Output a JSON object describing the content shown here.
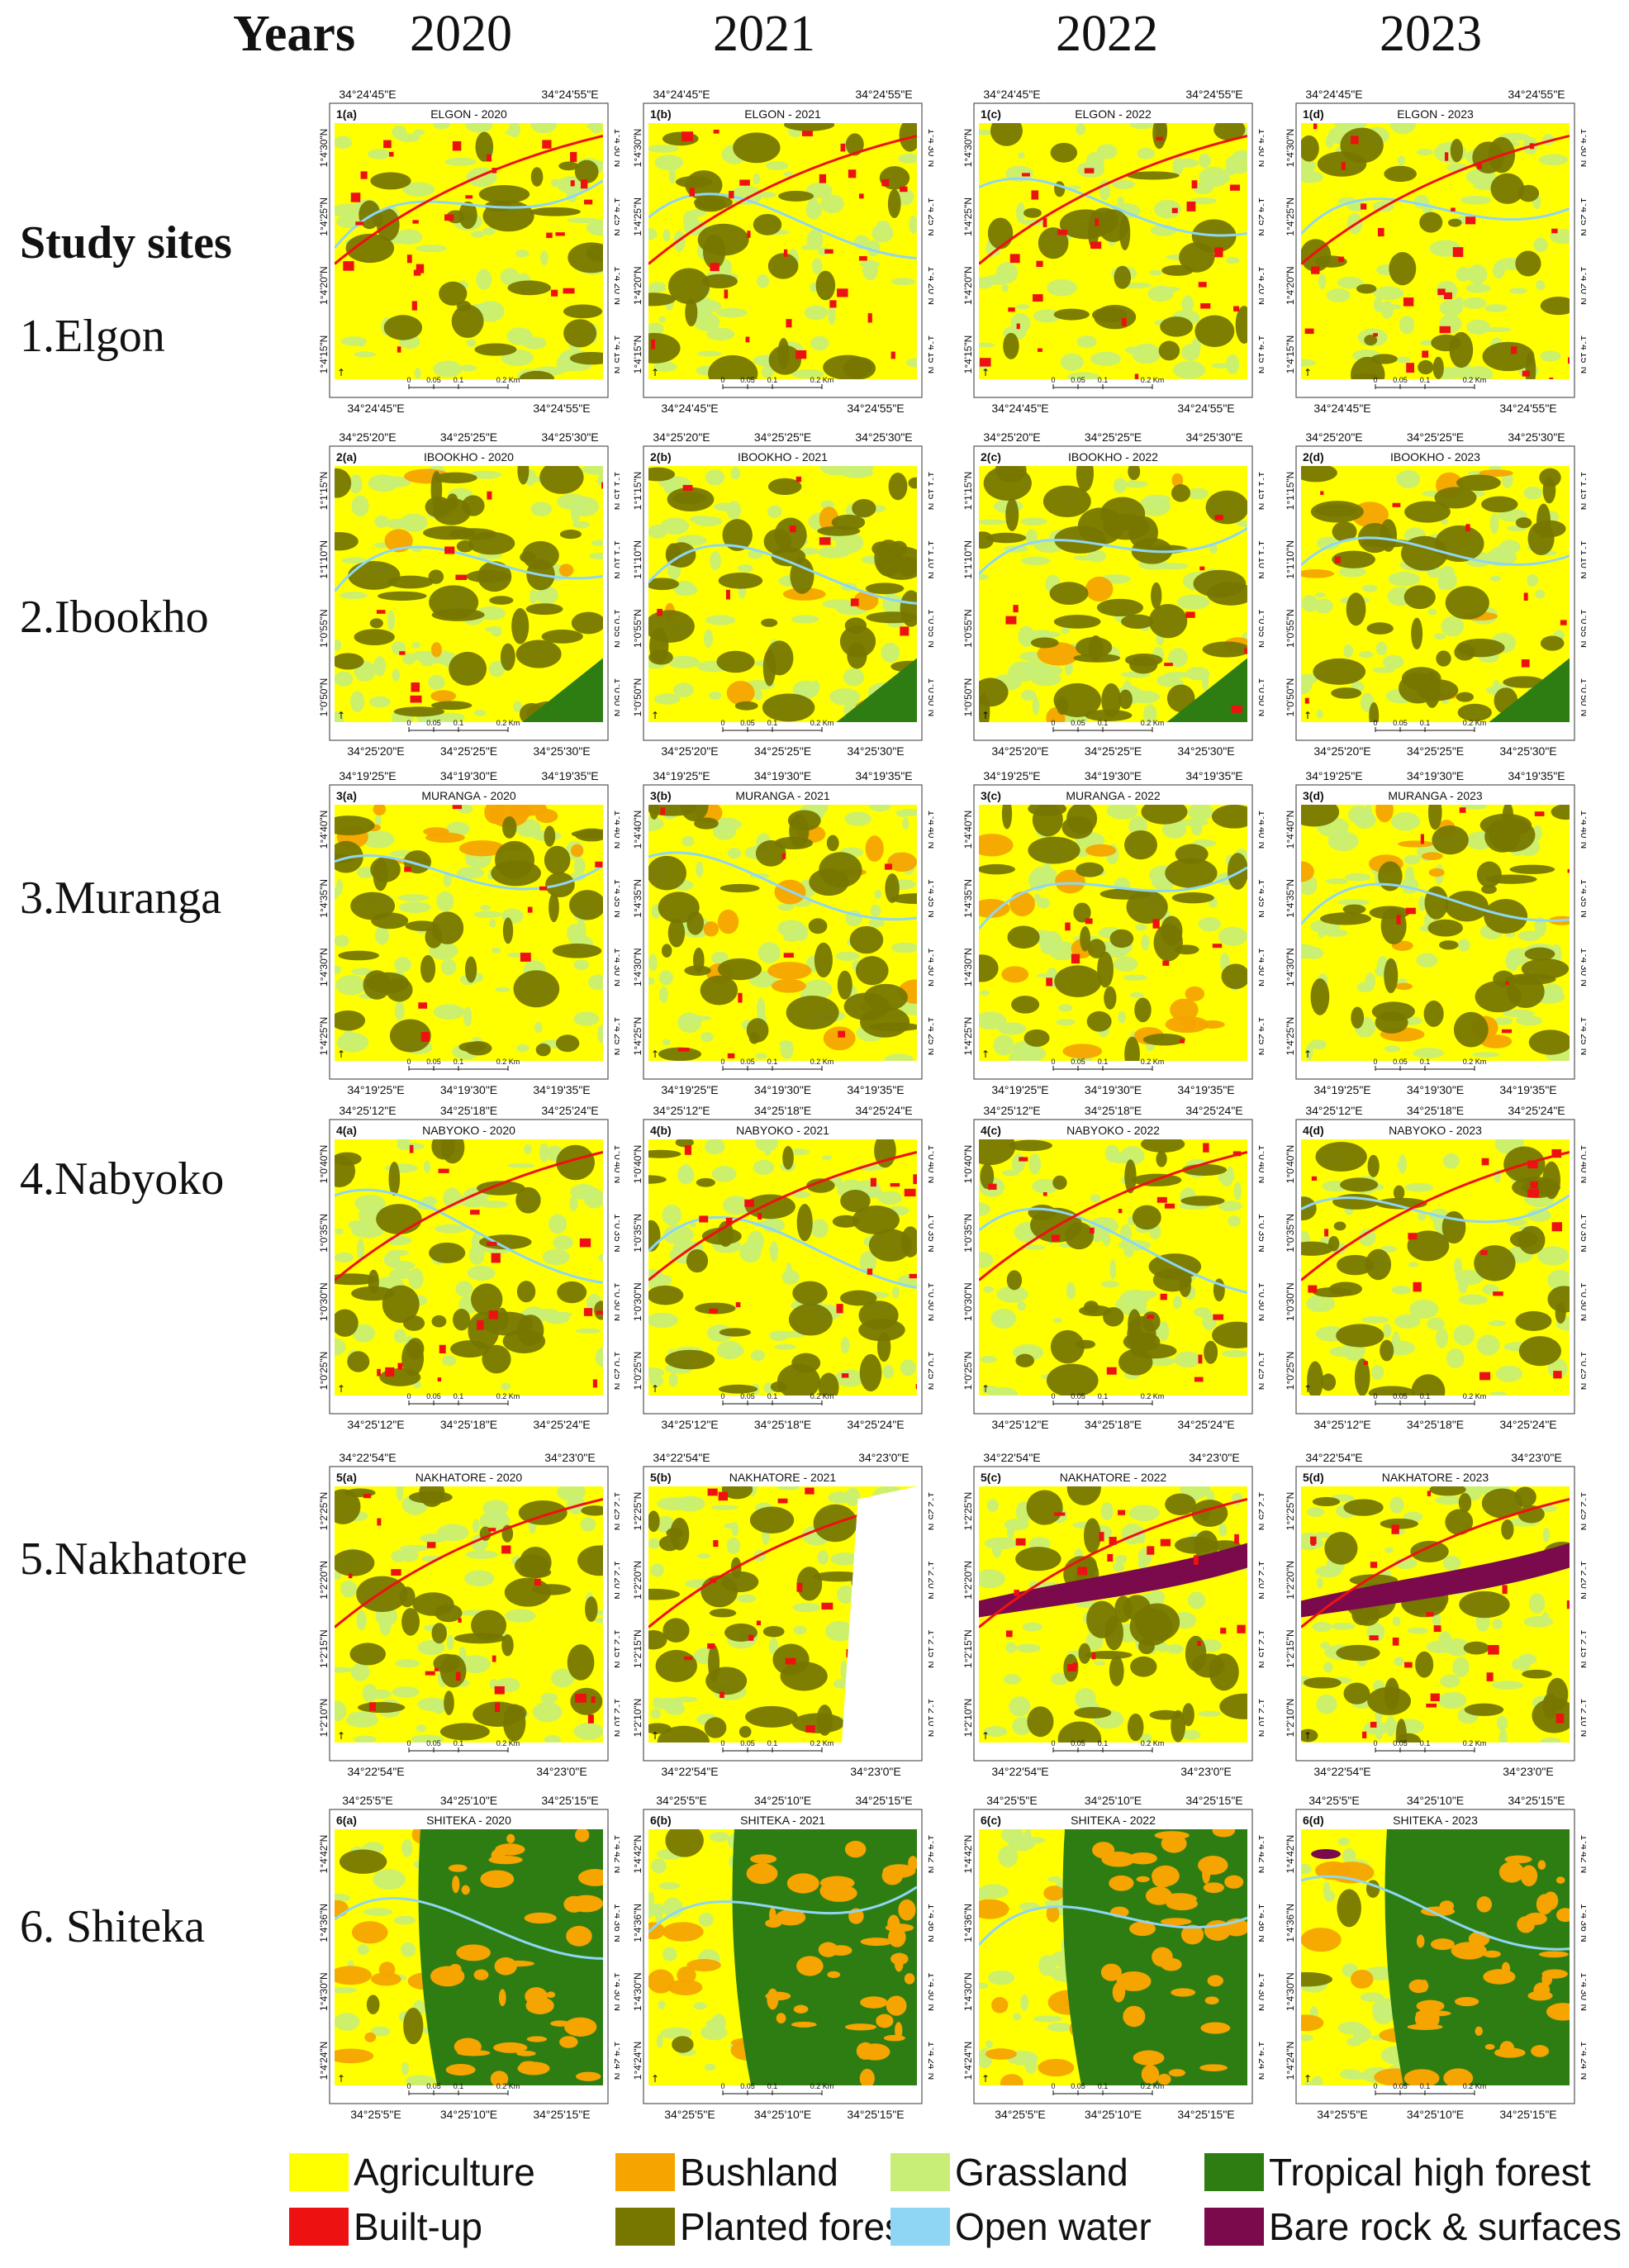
{
  "header": {
    "years_label": "Years",
    "study_sites_label": "Study sites"
  },
  "years": [
    "2020",
    "2021",
    "2022",
    "2023"
  ],
  "sites": [
    {
      "label": "1.Elgon",
      "name": "ELGON",
      "top_lon": [
        "34°24'45\"E",
        "34°24'55\"E"
      ],
      "bottom_lon": [
        "34°24'45\"E",
        "34°24'55\"E"
      ],
      "lat": [
        "1°4'30\"N",
        "1°4'25\"N",
        "1°4'20\"N",
        "1°4'15\"N"
      ],
      "builtup_level": 0.16,
      "forest_level": 0.3,
      "tropical_level": 0.0,
      "bushland_level": 0.0,
      "water_level": 0.05,
      "bare_level": 0.0
    },
    {
      "label": "2.Ibookho",
      "name": "IBOOKHO",
      "top_lon": [
        "34°25'20\"E",
        "34°25'25\"E",
        "34°25'30\"E"
      ],
      "bottom_lon": [
        "34°25'20\"E",
        "34°25'25\"E",
        "34°25'30\"E"
      ],
      "lat": [
        "1°1'15\"N",
        "1°1'10\"N",
        "1°0'55\"N",
        "1°0'50\"N"
      ],
      "builtup_level": 0.05,
      "forest_level": 0.45,
      "tropical_level": 0.05,
      "bushland_level": 0.05,
      "water_level": 0.04,
      "bare_level": 0.0
    },
    {
      "label": "3.Muranga",
      "name": "MURANGA",
      "top_lon": [
        "34°19'25\"E",
        "34°19'30\"E",
        "34°19'35\"E"
      ],
      "bottom_lon": [
        "34°19'25\"E",
        "34°19'30\"E",
        "34°19'35\"E"
      ],
      "lat": [
        "1°4'40\"N",
        "1°4'35\"N",
        "1°4'30\"N",
        "1°4'25\"N"
      ],
      "builtup_level": 0.05,
      "forest_level": 0.4,
      "tropical_level": 0.0,
      "bushland_level": 0.12,
      "water_level": 0.03,
      "bare_level": 0.0
    },
    {
      "label": "4.Nabyoko",
      "name": "NABYOKO",
      "top_lon": [
        "34°25'12\"E",
        "34°25'18\"E",
        "34°25'24\"E"
      ],
      "bottom_lon": [
        "34°25'12\"E",
        "34°25'18\"E",
        "34°25'24\"E"
      ],
      "lat": [
        "1°0'40\"N",
        "1°0'35\"N",
        "1°0'30\"N",
        "1°0'25\"N"
      ],
      "builtup_level": 0.1,
      "forest_level": 0.38,
      "tropical_level": 0.0,
      "bushland_level": 0.0,
      "water_level": 0.04,
      "bare_level": 0.0
    },
    {
      "label": "5.Nakhatore",
      "name": "NAKHATORE",
      "top_lon": [
        "34°22'54\"E",
        "34°23'0\"E"
      ],
      "bottom_lon": [
        "34°22'54\"E",
        "34°23'0\"E"
      ],
      "lat": [
        "1°2'25\"N",
        "1°2'20\"N",
        "1°2'15\"N",
        "1°2'10\"N"
      ],
      "builtup_level": 0.12,
      "forest_level": 0.4,
      "tropical_level": 0.0,
      "bushland_level": 0.0,
      "water_level": 0.0,
      "bare_level": 0.08
    },
    {
      "label": "6. Shiteka",
      "name": "SHITEKA",
      "top_lon": [
        "34°25'5\"E",
        "34°25'10\"E",
        "34°25'15\"E"
      ],
      "bottom_lon": [
        "34°25'5\"E",
        "34°25'10\"E",
        "34°25'15\"E"
      ],
      "lat": [
        "1°4'42\"N",
        "1°4'36\"N",
        "1°4'30\"N",
        "1°4'24\"N"
      ],
      "builtup_level": 0.0,
      "forest_level": 0.05,
      "tropical_level": 0.55,
      "bushland_level": 0.18,
      "water_level": 0.05,
      "bare_level": 0.01
    }
  ],
  "panels": [
    {
      "id": "1(a)",
      "title": "ELGON - 2020"
    },
    {
      "id": "1(b)",
      "title": "ELGON - 2021"
    },
    {
      "id": "1(c)",
      "title": "ELGON - 2022"
    },
    {
      "id": "1(d)",
      "title": "ELGON - 2023"
    },
    {
      "id": "2(a)",
      "title": "IBOOKHO - 2020"
    },
    {
      "id": "2(b)",
      "title": "IBOOKHO - 2021"
    },
    {
      "id": "2(c)",
      "title": "IBOOKHO - 2022"
    },
    {
      "id": "2(d)",
      "title": "IBOOKHO - 2023"
    },
    {
      "id": "3(a)",
      "title": "MURANGA - 2020"
    },
    {
      "id": "3(b)",
      "title": "MURANGA - 2021"
    },
    {
      "id": "3(c)",
      "title": "MURANGA - 2022"
    },
    {
      "id": "3(d)",
      "title": "MURANGA - 2023"
    },
    {
      "id": "4(a)",
      "title": "NABYOKO - 2020"
    },
    {
      "id": "4(b)",
      "title": "NABYOKO - 2021"
    },
    {
      "id": "4(c)",
      "title": "NABYOKO - 2022"
    },
    {
      "id": "4(d)",
      "title": "NABYOKO - 2023"
    },
    {
      "id": "5(a)",
      "title": "NAKHATORE - 2020"
    },
    {
      "id": "5(b)",
      "title": "NAKHATORE - 2021"
    },
    {
      "id": "5(c)",
      "title": "NAKHATORE - 2022"
    },
    {
      "id": "5(d)",
      "title": "NAKHATORE - 2023"
    },
    {
      "id": "6(a)",
      "title": "SHITEKA - 2020"
    },
    {
      "id": "6(b)",
      "title": "SHITEKA - 2021"
    },
    {
      "id": "6(c)",
      "title": "SHITEKA - 2022"
    },
    {
      "id": "6(d)",
      "title": "SHITEKA - 2023"
    }
  ],
  "scale_bar": {
    "ticks": [
      "0",
      "0.05",
      "0.1",
      "0.2 Km"
    ]
  },
  "legend": [
    {
      "label": "Agriculture",
      "color": "#ffff00"
    },
    {
      "label": "Bushland",
      "color": "#f5a400"
    },
    {
      "label": "Grassland",
      "color": "#c8ee78"
    },
    {
      "label": "Tropical high forest",
      "color": "#2e7d12"
    },
    {
      "label": "Built-up",
      "color": "#ee1111"
    },
    {
      "label": "Planted forest",
      "color": "#777700"
    },
    {
      "label": "Open water",
      "color": "#8fd6f5"
    },
    {
      "label": "Bare rock & surfaces",
      "color": "#7a0a4c"
    }
  ]
}
